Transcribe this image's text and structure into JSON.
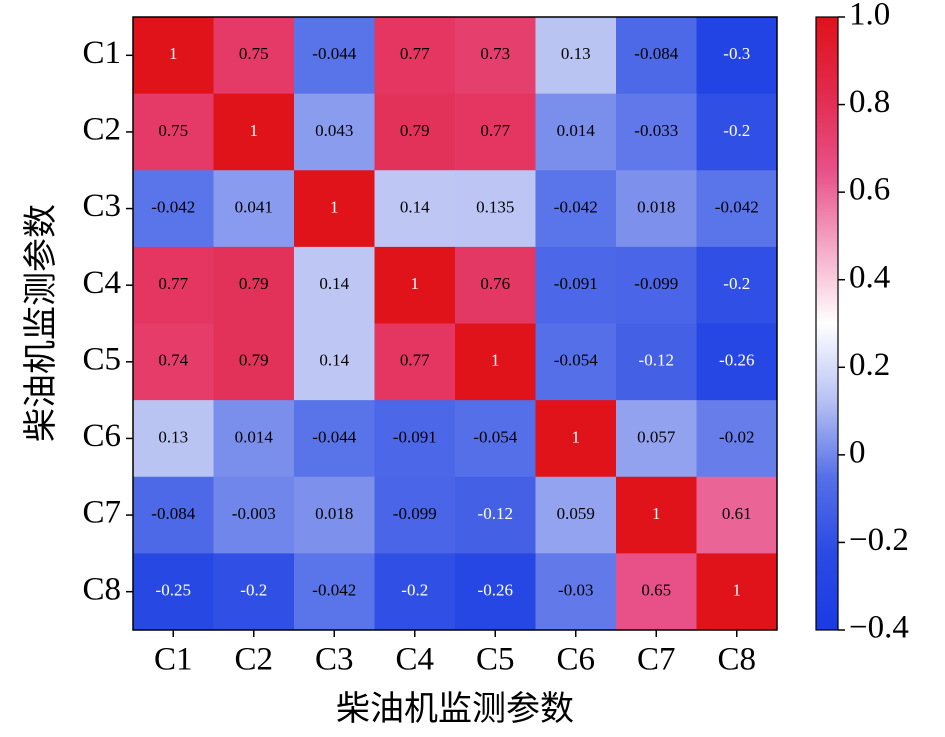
{
  "chart_data": {
    "type": "heatmap",
    "x_label": "柴油机监测参数",
    "y_label": "柴油机监测参数",
    "x_categories": [
      "C1",
      "C2",
      "C3",
      "C4",
      "C5",
      "C6",
      "C7",
      "C8"
    ],
    "y_categories": [
      "C1",
      "C2",
      "C3",
      "C4",
      "C5",
      "C6",
      "C7",
      "C8"
    ],
    "values": [
      [
        1,
        0.75,
        -0.044,
        0.77,
        0.73,
        0.13,
        -0.084,
        -0.3
      ],
      [
        0.75,
        1,
        0.043,
        0.79,
        0.77,
        0.014,
        -0.033,
        -0.2
      ],
      [
        -0.042,
        0.041,
        1,
        0.14,
        0.135,
        -0.042,
        0.018,
        -0.042
      ],
      [
        0.77,
        0.79,
        0.14,
        1,
        0.76,
        -0.091,
        -0.099,
        -0.2
      ],
      [
        0.74,
        0.79,
        0.14,
        0.77,
        1,
        -0.054,
        -0.12,
        -0.26
      ],
      [
        0.13,
        0.014,
        -0.044,
        -0.091,
        -0.054,
        1,
        0.057,
        -0.02
      ],
      [
        -0.084,
        -0.003,
        0.018,
        -0.099,
        -0.12,
        0.059,
        1,
        0.61
      ],
      [
        -0.25,
        -0.2,
        -0.042,
        -0.2,
        -0.26,
        -0.03,
        0.65,
        1
      ]
    ],
    "colorscale": [
      "#1a3be3",
      "#2a4ae4",
      "#5670e8",
      "#b8c2f3",
      "#ffffff",
      "#f5a8c6",
      "#e85088",
      "#e22a4e",
      "#e0121a"
    ],
    "clim": [
      -0.4,
      1.0
    ],
    "cticks": [
      {
        "value": -0.4,
        "label": "−0.4"
      },
      {
        "value": -0.2,
        "label": "−0.2"
      },
      0,
      0.2,
      0.4,
      0.6,
      0.8,
      {
        "value": 1.0,
        "label": "1.0"
      }
    ]
  }
}
